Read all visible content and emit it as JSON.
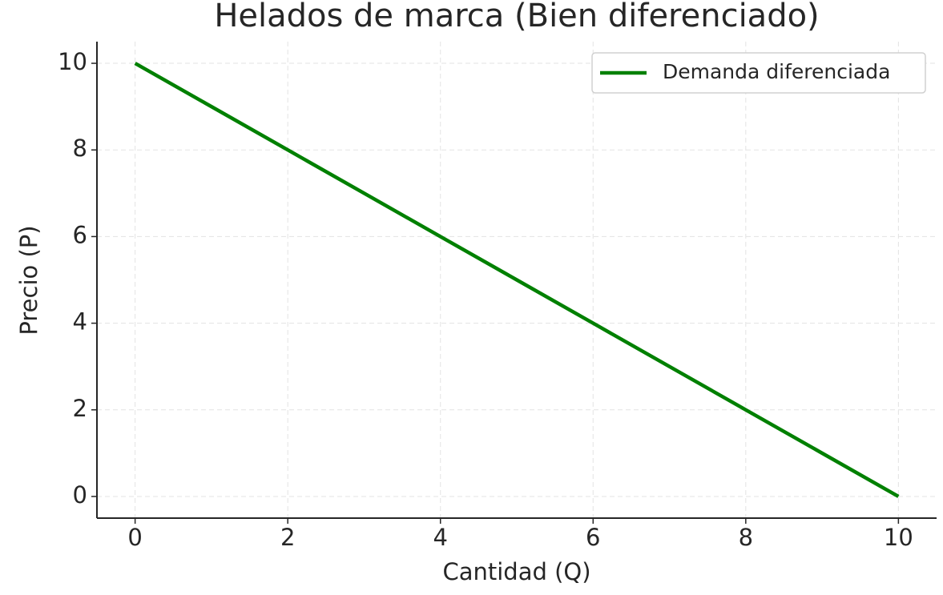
{
  "chart_data": {
    "type": "line",
    "title": "Helados de marca (Bien diferenciado)",
    "xlabel": "Cantidad (Q)",
    "ylabel": "Precio (P)",
    "x": [
      0,
      1,
      2,
      3,
      4,
      5,
      6,
      7,
      8,
      9,
      10
    ],
    "series": [
      {
        "name": "Demanda diferenciada",
        "color": "#008000",
        "values": [
          10,
          9,
          8,
          7,
          6,
          5,
          4,
          3,
          2,
          1,
          0
        ]
      }
    ],
    "xlim": [
      -0.5,
      10.5
    ],
    "ylim": [
      -0.5,
      10.5
    ],
    "xticks": [
      0,
      2,
      4,
      6,
      8,
      10
    ],
    "yticks": [
      0,
      2,
      4,
      6,
      8,
      10
    ],
    "grid": true,
    "legend": "upper right"
  }
}
